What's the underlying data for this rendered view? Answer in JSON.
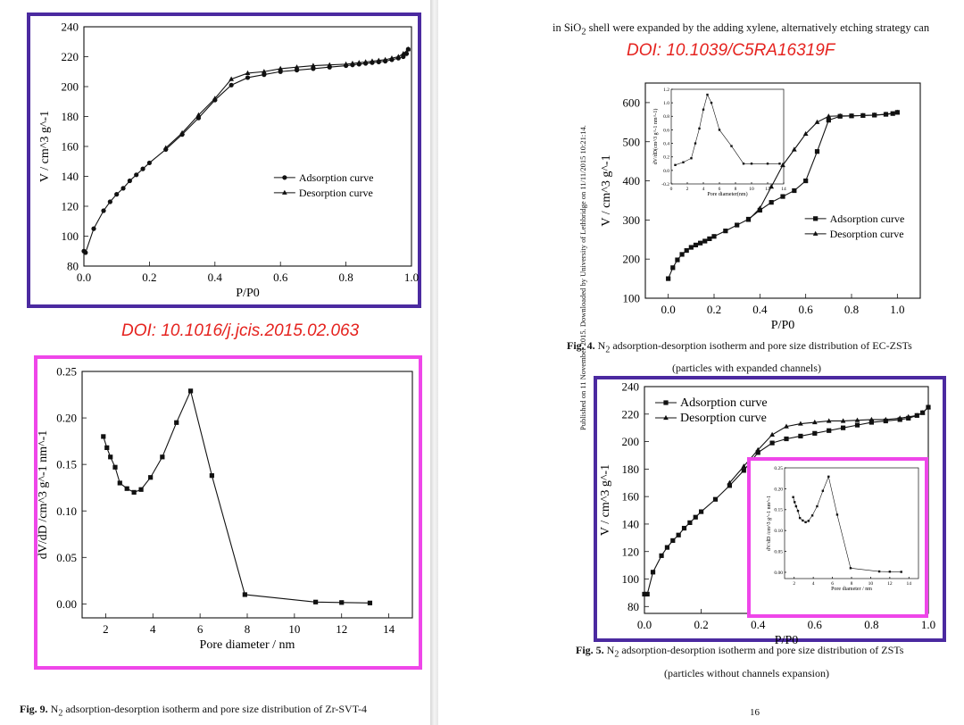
{
  "doc": {
    "side_note": "Published on 11 November 2015. Downloaded by University of Lethbridge on 11/11/2015 10:21:14.",
    "top_text_before": "in SiO",
    "top_text_sub": "2",
    "top_text_after": " shell were expanded by the adding xylene, alternatively etching strategy can",
    "page_number": "16"
  },
  "annotations": {
    "doi_left": "DOI: 10.1016/j.jcis.2015.02.063",
    "doi_right": "DOI: 10.1039/C5RA16319F",
    "colors": {
      "doi": "#e5231f",
      "purple_frame": "#4b2aa0",
      "magenta_frame": "#ef46e9"
    }
  },
  "captions": {
    "fig9": {
      "label": "Fig. 9.",
      "text_before": " N",
      "sub": "2",
      "text_after": " adsorption-desorption isotherm and pore size distribution of Zr-SVT-4"
    },
    "fig4": {
      "label": "Fig. 4.",
      "text_before": " N",
      "sub": "2",
      "text_after": " adsorption-desorption isotherm and pore size distribution of EC-ZSTs",
      "line2": "(particles with expanded channels)"
    },
    "fig5": {
      "label": "Fig. 5.",
      "text_before": " N",
      "sub": "2",
      "text_after": " adsorption-desorption isotherm and pore size distribution of ZSTs",
      "line2": "(particles without channels expansion)"
    }
  },
  "chart_data": [
    {
      "id": "fig9_isotherm",
      "type": "line",
      "title": "",
      "xlabel": "P/P0",
      "ylabel": "V / cm^3 g^-1",
      "xlim": [
        0,
        1.0
      ],
      "ylim": [
        80,
        240
      ],
      "xticks": [
        "0.0",
        "0.2",
        "0.4",
        "0.6",
        "0.8",
        "1.0"
      ],
      "yticks": [
        "80",
        "100",
        "120",
        "140",
        "160",
        "180",
        "200",
        "220",
        "240"
      ],
      "legend": [
        "Adsorption curve",
        "Desorption curve"
      ],
      "legend_position": "center-right",
      "series": [
        {
          "name": "Adsorption curve",
          "marker": "circle",
          "x": [
            0.0,
            0.005,
            0.03,
            0.06,
            0.08,
            0.1,
            0.12,
            0.14,
            0.16,
            0.18,
            0.2,
            0.25,
            0.3,
            0.35,
            0.4,
            0.45,
            0.5,
            0.55,
            0.6,
            0.65,
            0.7,
            0.75,
            0.8,
            0.82,
            0.84,
            0.86,
            0.88,
            0.9,
            0.92,
            0.94,
            0.96,
            0.975,
            0.985,
            0.99
          ],
          "y": [
            90,
            89,
            105,
            117,
            123,
            128,
            132,
            137,
            141,
            145,
            149,
            158,
            168,
            179,
            191,
            201,
            206,
            208,
            210,
            211,
            212,
            213,
            214,
            214.5,
            215,
            215.5,
            216,
            216.5,
            217,
            218,
            219,
            220,
            222,
            225
          ]
        },
        {
          "name": "Desorption curve",
          "marker": "triangle",
          "x": [
            0.99,
            0.975,
            0.96,
            0.94,
            0.92,
            0.9,
            0.88,
            0.86,
            0.84,
            0.82,
            0.8,
            0.75,
            0.7,
            0.65,
            0.6,
            0.55,
            0.5,
            0.45,
            0.4,
            0.35,
            0.3,
            0.25
          ],
          "y": [
            225,
            222,
            220,
            219,
            218,
            217.5,
            217,
            216.5,
            216,
            215.5,
            215,
            214.5,
            214,
            213,
            212,
            210,
            209,
            205,
            192,
            181,
            169,
            159
          ]
        }
      ]
    },
    {
      "id": "fig9_psd",
      "type": "line",
      "title": "",
      "xlabel": "Pore diameter / nm",
      "ylabel": "dV/dD /cm^3 g^-1 nm^-1",
      "xlim": [
        1,
        15
      ],
      "ylim": [
        -0.015,
        0.25
      ],
      "xticks": [
        "2",
        "4",
        "6",
        "8",
        "10",
        "12",
        "14"
      ],
      "yticks": [
        "0.00",
        "0.05",
        "0.10",
        "0.15",
        "0.20",
        "0.25"
      ],
      "series": [
        {
          "name": "PSD",
          "marker": "square",
          "x": [
            1.9,
            2.05,
            2.2,
            2.4,
            2.6,
            2.9,
            3.2,
            3.5,
            3.9,
            4.4,
            5.0,
            5.6,
            6.5,
            7.9,
            10.9,
            12.0,
            13.2
          ],
          "y": [
            0.18,
            0.168,
            0.158,
            0.147,
            0.13,
            0.124,
            0.12,
            0.123,
            0.136,
            0.158,
            0.195,
            0.229,
            0.138,
            0.01,
            0.002,
            0.0015,
            0.001
          ]
        }
      ]
    },
    {
      "id": "fig4_isotherm",
      "type": "line",
      "title": "",
      "xlabel": "P/P0",
      "ylabel": "V / cm^3 g^-1",
      "xlim": [
        -0.1,
        1.1
      ],
      "ylim": [
        100,
        650
      ],
      "xticks": [
        "0.0",
        "0.2",
        "0.4",
        "0.6",
        "0.8",
        "1.0"
      ],
      "yticks": [
        "100",
        "200",
        "300",
        "400",
        "500",
        "600"
      ],
      "legend": [
        "Adsorption curve",
        "Desorption curve"
      ],
      "legend_position": "center-right",
      "series": [
        {
          "name": "Adsorption curve",
          "marker": "square",
          "x": [
            0.0,
            0.02,
            0.04,
            0.06,
            0.08,
            0.1,
            0.12,
            0.14,
            0.16,
            0.18,
            0.2,
            0.25,
            0.3,
            0.35,
            0.4,
            0.45,
            0.5,
            0.55,
            0.6,
            0.65,
            0.7,
            0.75,
            0.8,
            0.85,
            0.9,
            0.95,
            0.98,
            1.0
          ],
          "y": [
            150,
            178,
            198,
            212,
            222,
            230,
            236,
            241,
            246,
            252,
            258,
            272,
            287,
            302,
            325,
            345,
            360,
            375,
            400,
            475,
            555,
            565,
            566,
            567,
            568,
            570,
            572,
            575
          ]
        },
        {
          "name": "Desorption curve",
          "marker": "triangle",
          "x": [
            1.0,
            0.95,
            0.9,
            0.85,
            0.8,
            0.75,
            0.7,
            0.65,
            0.6,
            0.55,
            0.5,
            0.45,
            0.4,
            0.35
          ],
          "y": [
            575,
            570,
            568,
            567,
            566,
            566,
            565,
            550,
            520,
            480,
            440,
            385,
            330,
            300
          ]
        }
      ]
    },
    {
      "id": "fig4_inset_psd",
      "type": "line",
      "title": "",
      "xlabel": "Pore diameter(nm)",
      "ylabel": "dV/dD(cm^3 g^-1 nm^-1)",
      "xlim": [
        0,
        14
      ],
      "ylim": [
        -0.2,
        1.2
      ],
      "xticks": [
        "0",
        "2",
        "4",
        "6",
        "8",
        "10",
        "12",
        "14"
      ],
      "yticks": [
        "-0.2",
        "0.0",
        "0.2",
        "0.4",
        "0.6",
        "0.8",
        "1.0",
        "1.2"
      ],
      "series": [
        {
          "name": "PSD",
          "marker": "square",
          "x": [
            0.5,
            1.5,
            2.5,
            3.0,
            3.5,
            4.0,
            4.5,
            5.0,
            6.0,
            7.5,
            9.0,
            10.0,
            12.0,
            13.5
          ],
          "y": [
            0.08,
            0.12,
            0.18,
            0.4,
            0.62,
            0.9,
            1.12,
            1.0,
            0.6,
            0.36,
            0.1,
            0.1,
            0.1,
            0.1
          ]
        }
      ]
    },
    {
      "id": "fig5_isotherm",
      "type": "line",
      "title": "",
      "xlabel": "P/P0",
      "ylabel": "V / cm^3 g^-1",
      "xlim": [
        0,
        1.0
      ],
      "ylim": [
        75,
        240
      ],
      "xticks": [
        "0.0",
        "0.2",
        "0.4",
        "0.6",
        "0.8",
        "1.0"
      ],
      "yticks": [
        "80",
        "100",
        "120",
        "140",
        "160",
        "180",
        "200",
        "220",
        "240"
      ],
      "legend": [
        "Adsorption curve",
        "Desorption curve"
      ],
      "legend_position": "top-left",
      "series": [
        {
          "name": "Adsorption curve",
          "marker": "square",
          "x": [
            0.0,
            0.01,
            0.03,
            0.06,
            0.08,
            0.1,
            0.12,
            0.14,
            0.16,
            0.18,
            0.2,
            0.25,
            0.3,
            0.35,
            0.4,
            0.45,
            0.5,
            0.55,
            0.6,
            0.65,
            0.7,
            0.75,
            0.8,
            0.85,
            0.9,
            0.93,
            0.96,
            0.98,
            1.0
          ],
          "y": [
            89,
            89,
            105,
            117,
            123,
            128,
            132,
            137,
            141,
            145,
            149,
            158,
            168,
            179,
            192,
            199,
            202,
            204,
            206,
            208,
            210,
            212,
            214,
            215,
            216,
            217,
            219,
            221,
            225
          ]
        },
        {
          "name": "Desorption curve",
          "marker": "triangle",
          "x": [
            1.0,
            0.98,
            0.96,
            0.93,
            0.9,
            0.85,
            0.8,
            0.75,
            0.7,
            0.65,
            0.6,
            0.55,
            0.5,
            0.45,
            0.4,
            0.35,
            0.3
          ],
          "y": [
            225,
            221,
            219,
            218,
            217,
            216,
            216,
            215.5,
            215,
            215,
            214,
            213,
            211,
            205,
            194,
            182,
            170
          ]
        }
      ]
    },
    {
      "id": "fig5_inset_psd",
      "type": "line",
      "title": "",
      "xlabel": "Pore diameter / nm",
      "ylabel": "dV/dD /cm^3 g^-1 nm^-1",
      "xlim": [
        1,
        15
      ],
      "ylim": [
        -0.015,
        0.25
      ],
      "xticks": [
        "2",
        "4",
        "6",
        "8",
        "10",
        "12",
        "14"
      ],
      "yticks": [
        "0.00",
        "0.05",
        "0.10",
        "0.15",
        "0.20",
        "0.25"
      ],
      "series": [
        {
          "name": "PSD",
          "marker": "square",
          "x": [
            1.9,
            2.05,
            2.2,
            2.4,
            2.6,
            2.9,
            3.2,
            3.5,
            3.9,
            4.4,
            5.0,
            5.6,
            6.5,
            7.9,
            10.9,
            12.0,
            13.2
          ],
          "y": [
            0.18,
            0.168,
            0.158,
            0.147,
            0.13,
            0.124,
            0.12,
            0.123,
            0.136,
            0.158,
            0.195,
            0.229,
            0.138,
            0.01,
            0.002,
            0.0015,
            0.001
          ]
        }
      ]
    }
  ]
}
